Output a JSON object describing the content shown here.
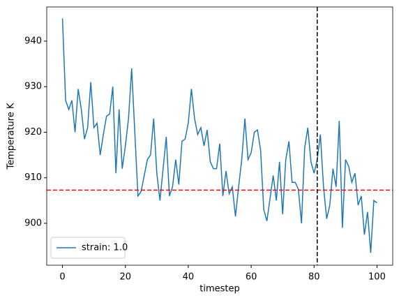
{
  "chart_data": {
    "type": "line",
    "xlabel": "timestep",
    "ylabel": "Temperature K",
    "x": [
      0,
      1,
      2,
      3,
      4,
      5,
      6,
      7,
      8,
      9,
      10,
      11,
      12,
      13,
      14,
      15,
      16,
      17,
      18,
      19,
      20,
      21,
      22,
      23,
      24,
      25,
      26,
      27,
      28,
      29,
      30,
      31,
      32,
      33,
      34,
      35,
      36,
      37,
      38,
      39,
      40,
      41,
      42,
      43,
      44,
      45,
      46,
      47,
      48,
      49,
      50,
      51,
      52,
      53,
      54,
      55,
      56,
      57,
      58,
      59,
      60,
      61,
      62,
      63,
      64,
      65,
      66,
      67,
      68,
      69,
      70,
      71,
      72,
      73,
      74,
      75,
      76,
      77,
      78,
      79,
      80,
      81,
      82,
      83,
      84,
      85,
      86,
      87,
      88,
      89,
      90,
      91,
      92,
      93,
      94,
      95,
      96,
      97,
      98,
      99,
      100
    ],
    "series": [
      {
        "name": "strain: 1.0",
        "color": "#1f77b4",
        "values": [
          945,
          927,
          925,
          927,
          920,
          929.5,
          925,
          918.5,
          921,
          931,
          921,
          922,
          915,
          919.5,
          923.5,
          924,
          930,
          911,
          925,
          912,
          917,
          923,
          934,
          920,
          906,
          907,
          910.5,
          914,
          915,
          923,
          911,
          905,
          912,
          919,
          906,
          908,
          914,
          908.5,
          918,
          918.5,
          922,
          929.5,
          923,
          919.5,
          921,
          917,
          920.5,
          913.5,
          912,
          912,
          917.5,
          906,
          911.5,
          906.5,
          908,
          901.5,
          908,
          914,
          923,
          914,
          915.5,
          920,
          920.5,
          916,
          903,
          900.5,
          905.5,
          910.5,
          905,
          913.5,
          902,
          914,
          918,
          909,
          909,
          907.5,
          900,
          916.5,
          921,
          913.5,
          911,
          914,
          919.5,
          908,
          901,
          904,
          912,
          908,
          922.5,
          899,
          914,
          912.5,
          909,
          911,
          904,
          906,
          897.5,
          902.5,
          893.5,
          905,
          904.5
        ]
      }
    ],
    "hline": {
      "value": 907.3,
      "color": "#ff0000"
    },
    "vline": {
      "value": 81,
      "color": "#000000"
    },
    "xlim": [
      -5,
      105
    ],
    "ylim": [
      890.8,
      947.5
    ],
    "xticks": [
      0,
      20,
      40,
      60,
      80,
      100
    ],
    "yticks": [
      900,
      910,
      920,
      930,
      940
    ],
    "legend": "lower left"
  }
}
